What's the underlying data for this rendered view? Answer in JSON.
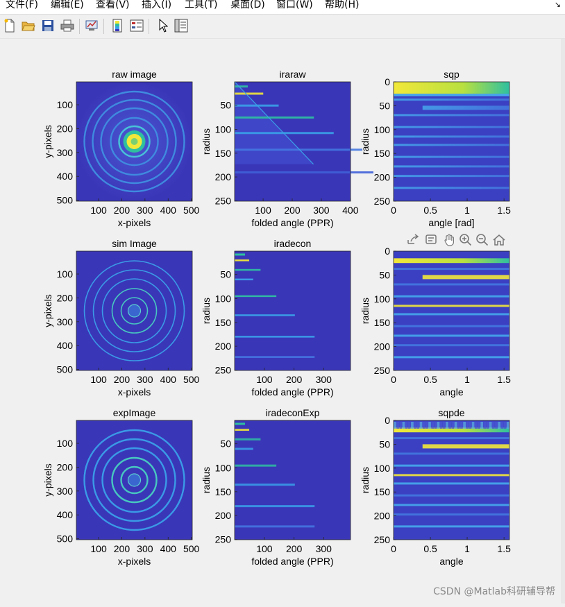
{
  "menubar": {
    "items": [
      "文件(F)",
      "编辑(E)",
      "查看(V)",
      "插入(I)",
      "工具(T)",
      "桌面(D)",
      "窗口(W)",
      "帮助(H)"
    ],
    "extra": "↘"
  },
  "toolbar": {
    "buttons": [
      {
        "name": "new-figure-icon"
      },
      {
        "name": "open-file-icon"
      },
      {
        "name": "save-icon"
      },
      {
        "name": "print-icon"
      },
      {
        "name": "link-plot-icon"
      },
      {
        "name": "insert-colorbar-icon"
      },
      {
        "name": "insert-legend-icon"
      },
      {
        "name": "pointer-icon"
      },
      {
        "name": "property-inspector-icon"
      }
    ]
  },
  "axes_toolbar": {
    "tools": [
      {
        "name": "export-icon"
      },
      {
        "name": "data-tip-icon"
      },
      {
        "name": "pan-icon"
      },
      {
        "name": "zoom-in-icon"
      },
      {
        "name": "zoom-out-icon"
      },
      {
        "name": "home-icon"
      }
    ]
  },
  "colors": {
    "background": "#3a36b8",
    "ring": "#3aa0e8",
    "bright": "#f2e83a",
    "mid": "#2fc0a0"
  },
  "chart_data": [
    {
      "type": "heatmap",
      "name": "raw",
      "title": "raw image",
      "xlabel": "x-pixels",
      "ylabel": "y-pixels",
      "xticks": [
        "100",
        "200",
        "300",
        "400",
        "500"
      ],
      "yticks": [
        "100",
        "200",
        "300",
        "400",
        "500"
      ],
      "render": "rings-raw"
    },
    {
      "type": "heatmap",
      "name": "iraraw",
      "title": "iraraw",
      "xlabel": "folded angle (PPR)",
      "ylabel": "radius",
      "xticks": [
        "100",
        "200",
        "300",
        "400"
      ],
      "yticks": [
        "50",
        "100",
        "150",
        "200",
        "250"
      ],
      "render": "iraraw"
    },
    {
      "type": "heatmap",
      "name": "sqp",
      "title": "sqp",
      "xlabel": "angle [rad]",
      "ylabel": "radius",
      "xticks": [
        "0",
        "0.5",
        "1",
        "1.5"
      ],
      "yticks": [
        "0",
        "50",
        "100",
        "150",
        "200",
        "250"
      ],
      "render": "sqp"
    },
    {
      "type": "heatmap",
      "name": "sim",
      "title": "sim Image",
      "xlabel": "x-pixels",
      "ylabel": "y-pixels",
      "xticks": [
        "100",
        "200",
        "300",
        "400",
        "500"
      ],
      "yticks": [
        "100",
        "200",
        "300",
        "400",
        "500"
      ],
      "render": "rings-sim"
    },
    {
      "type": "heatmap",
      "name": "iradecon",
      "title": "iradecon",
      "xlabel": "folded angle (PPR)",
      "ylabel": "radius",
      "xticks": [
        "100",
        "200",
        "300"
      ],
      "yticks": [
        "50",
        "100",
        "150",
        "200",
        "250"
      ],
      "render": "iradecon"
    },
    {
      "type": "heatmap",
      "name": "sqp2",
      "title": "",
      "xlabel": "angle",
      "ylabel": "radius",
      "xticks": [
        "0",
        "0.5",
        "1",
        "1.5"
      ],
      "yticks": [
        "0",
        "50",
        "100",
        "150",
        "200",
        "250"
      ],
      "render": "sqp2"
    },
    {
      "type": "heatmap",
      "name": "exp",
      "title": "expImage",
      "xlabel": "x-pixels",
      "ylabel": "y-pixels",
      "xticks": [
        "100",
        "200",
        "300",
        "400",
        "500"
      ],
      "yticks": [
        "100",
        "200",
        "300",
        "400",
        "500"
      ],
      "render": "rings-exp"
    },
    {
      "type": "heatmap",
      "name": "iradeconExp",
      "title": "iradeconExp",
      "xlabel": "folded angle (PPR)",
      "ylabel": "radius",
      "xticks": [
        "100",
        "200",
        "300"
      ],
      "yticks": [
        "50",
        "100",
        "150",
        "200",
        "250"
      ],
      "render": "iradeconExp"
    },
    {
      "type": "heatmap",
      "name": "sqpde",
      "title": "sqpde",
      "xlabel": "angle",
      "ylabel": "radius",
      "xticks": [
        "0",
        "0.5",
        "1",
        "1.5"
      ],
      "yticks": [
        "0",
        "50",
        "100",
        "150",
        "200",
        "250"
      ],
      "render": "sqpde"
    }
  ],
  "watermark": "CSDN @Matlab科研辅导帮"
}
